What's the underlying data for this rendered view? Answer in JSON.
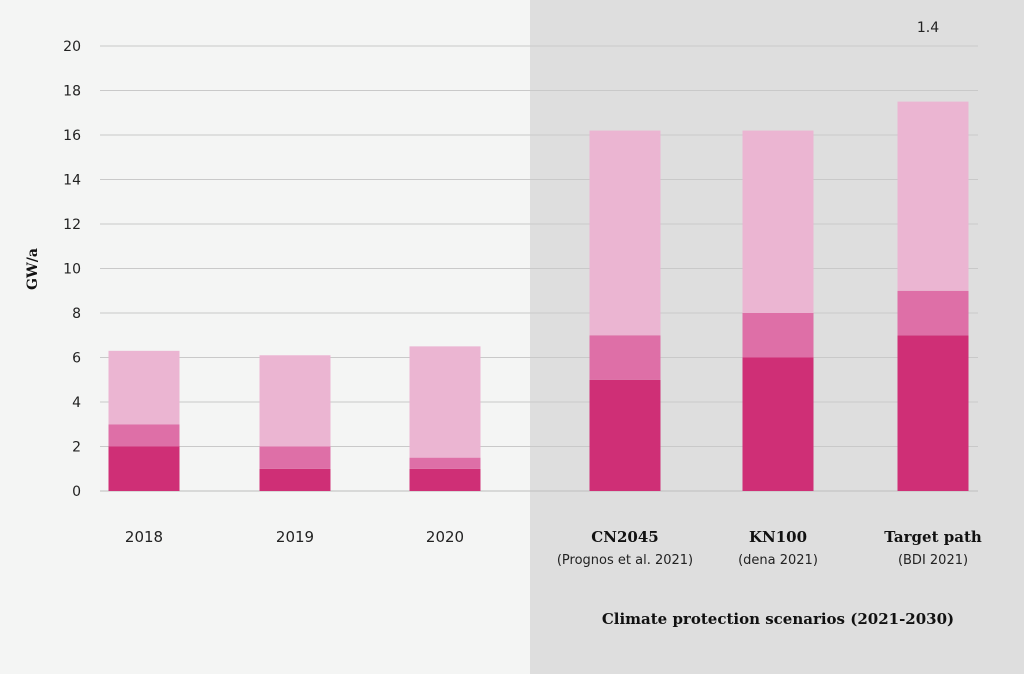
{
  "chart_data": {
    "type": "bar",
    "stacked": true,
    "ylabel": "GW/a",
    "ylim": [
      0,
      20
    ],
    "yticks": [
      0,
      2,
      4,
      6,
      8,
      10,
      12,
      14,
      16,
      18,
      20
    ],
    "grid": true,
    "categories": [
      {
        "label": "2018",
        "sublabel": "",
        "bold": false
      },
      {
        "label": "2019",
        "sublabel": "",
        "bold": false
      },
      {
        "label": "2020",
        "sublabel": "",
        "bold": false
      },
      {
        "label": "CN2045",
        "sublabel": "(Prognos et al. 2021)",
        "bold": true
      },
      {
        "label": "KN100",
        "sublabel": "(dena 2021)",
        "bold": true
      },
      {
        "label": "Target path",
        "sublabel": "(BDI 2021)",
        "bold": true
      }
    ],
    "series": [
      {
        "values": [
          2,
          1,
          1,
          5,
          6,
          7
        ],
        "color": "#cf2f76"
      },
      {
        "values": [
          1,
          1,
          0.5,
          2,
          2,
          2
        ],
        "color": "#de6fa7"
      },
      {
        "values": [
          3.3,
          4.1,
          5,
          9.2,
          8.2,
          8.5
        ],
        "color": "#ebb5d2"
      }
    ],
    "region": {
      "label": "Climate protection scenarios (2021-2030)",
      "from_category": 3,
      "color": "#dedede"
    },
    "annotation": {
      "text": "1.4",
      "category": 5
    },
    "background": "#f4f5f4"
  }
}
